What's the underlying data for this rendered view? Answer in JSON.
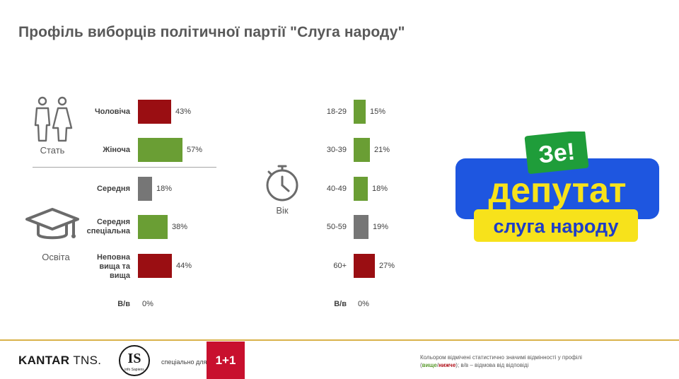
{
  "title": "Профіль виборців політичної партії \"Слуга народу\"",
  "colors": {
    "higher": "#6a9e34",
    "lower": "#9a0e12",
    "neutral": "#767676"
  },
  "icons": {
    "gender": "man-woman-icon",
    "education": "graduation-cap-icon",
    "age": "stopwatch-icon"
  },
  "gender": {
    "label": "Стать",
    "items": [
      {
        "label": "Чоловіча",
        "value": 43,
        "text": "43%",
        "status": "lower"
      },
      {
        "label": "Жіноча",
        "value": 57,
        "text": "57%",
        "status": "higher"
      }
    ]
  },
  "education": {
    "label": "Освіта",
    "items": [
      {
        "label": "Середня",
        "value": 18,
        "text": "18%",
        "status": "neutral"
      },
      {
        "label": "Середня спеціальна",
        "value": 38,
        "text": "38%",
        "status": "higher"
      },
      {
        "label": "Неповна вища та вища",
        "value": 44,
        "text": "44%",
        "status": "lower"
      }
    ],
    "refusal": {
      "label": "В/в",
      "text": "0%"
    }
  },
  "age": {
    "label": "Вік",
    "items": [
      {
        "label": "18-29",
        "value": 15,
        "text": "15%",
        "status": "higher"
      },
      {
        "label": "30-39",
        "value": 21,
        "text": "21%",
        "status": "higher"
      },
      {
        "label": "40-49",
        "value": 18,
        "text": "18%",
        "status": "higher"
      },
      {
        "label": "50-59",
        "value": 19,
        "text": "19%",
        "status": "neutral"
      },
      {
        "label": "60+",
        "value": 27,
        "text": "27%",
        "status": "lower"
      }
    ],
    "refusal": {
      "label": "В/в",
      "text": "0%"
    }
  },
  "chart_data": [
    {
      "type": "bar",
      "title": "Стать",
      "categories": [
        "Чоловіча",
        "Жіноча"
      ],
      "values": [
        43,
        57
      ]
    },
    {
      "type": "bar",
      "title": "Освіта",
      "categories": [
        "Середня",
        "Середня спеціальна",
        "Неповна вища та вища",
        "В/в"
      ],
      "values": [
        18,
        38,
        44,
        0
      ]
    },
    {
      "type": "bar",
      "title": "Вік",
      "categories": [
        "18-29",
        "30-39",
        "40-49",
        "50-59",
        "60+",
        "В/в"
      ],
      "values": [
        15,
        21,
        18,
        19,
        27,
        0
      ]
    }
  ],
  "badge": {
    "ze": "Зе!",
    "main": "депутат",
    "sub": "слуга народу"
  },
  "footer": {
    "kantar": "KANTAR",
    "tns": "TNS.",
    "is_big": "IS",
    "is_small": "info Sapiens",
    "special": "спеціально для:",
    "channel": "1+1",
    "note_line1": "Кольором відмічені статистично значимі відмінності у профілі",
    "note_open": "(",
    "note_higher": "вище",
    "note_slash": "/",
    "note_lower": "нижче",
    "note_rest": "); в/в – відмова від відповіді"
  }
}
